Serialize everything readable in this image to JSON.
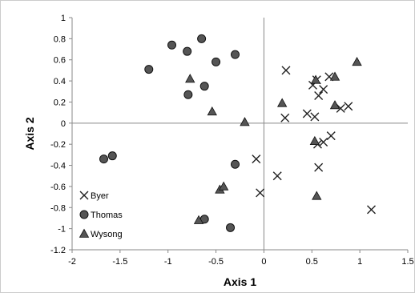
{
  "chart_data": {
    "type": "scatter",
    "title": "",
    "xlabel": "Axis 1",
    "ylabel": "Axis 2",
    "xlim": [
      -2,
      1.5
    ],
    "ylim": [
      -1.2,
      1
    ],
    "xticks": [
      "-2",
      "-1.5",
      "-1",
      "-0.5",
      "0",
      "0.5",
      "1",
      "1.5"
    ],
    "xtick_values": [
      -2,
      -1.5,
      -1,
      -0.5,
      0,
      0.5,
      1,
      1.5
    ],
    "yticks": [
      "1",
      "0.8",
      "0.6",
      "0.4",
      "0.2",
      "0",
      "-0.2",
      "-0.4",
      "-0.6",
      "-0.8",
      "-1",
      "-1.2"
    ],
    "ytick_values": [
      1,
      0.8,
      0.6,
      0.4,
      0.2,
      0,
      -0.2,
      -0.4,
      -0.6,
      -0.8,
      -1,
      -1.2
    ],
    "grid": false,
    "legend_position": "bottom-left",
    "series": [
      {
        "name": "Byer",
        "marker": "x",
        "color": "#222222",
        "points": [
          [
            0.23,
            0.5
          ],
          [
            0.22,
            0.05
          ],
          [
            0.45,
            0.09
          ],
          [
            0.51,
            0.36
          ],
          [
            0.55,
            0.41
          ],
          [
            0.53,
            0.06
          ],
          [
            0.57,
            0.26
          ],
          [
            0.62,
            0.32
          ],
          [
            0.68,
            0.44
          ],
          [
            0.8,
            0.14
          ],
          [
            0.88,
            0.16
          ],
          [
            0.56,
            -0.2
          ],
          [
            0.62,
            -0.18
          ],
          [
            0.7,
            -0.12
          ],
          [
            -0.08,
            -0.34
          ],
          [
            0.14,
            -0.5
          ],
          [
            -0.04,
            -0.66
          ],
          [
            0.57,
            -0.42
          ],
          [
            1.12,
            -0.82
          ]
        ]
      },
      {
        "name": "Thomas",
        "marker": "circle",
        "color": "#555555",
        "points": [
          [
            -1.2,
            0.51
          ],
          [
            -0.96,
            0.74
          ],
          [
            -0.8,
            0.68
          ],
          [
            -0.65,
            0.8
          ],
          [
            -0.5,
            0.58
          ],
          [
            -0.3,
            0.65
          ],
          [
            -0.62,
            0.35
          ],
          [
            -0.79,
            0.27
          ],
          [
            -0.3,
            -0.39
          ],
          [
            -1.67,
            -0.34
          ],
          [
            -1.58,
            -0.31
          ],
          [
            -0.62,
            -0.91
          ],
          [
            -0.35,
            -0.99
          ]
        ]
      },
      {
        "name": "Wysong",
        "marker": "triangle",
        "color": "#555555",
        "points": [
          [
            -0.77,
            0.42
          ],
          [
            -0.54,
            0.11
          ],
          [
            -0.2,
            0.01
          ],
          [
            0.19,
            0.19
          ],
          [
            0.54,
            0.41
          ],
          [
            0.74,
            0.44
          ],
          [
            0.97,
            0.58
          ],
          [
            0.74,
            0.17
          ],
          [
            0.53,
            -0.17
          ],
          [
            0.55,
            -0.69
          ],
          [
            -0.46,
            -0.63
          ],
          [
            -0.42,
            -0.6
          ],
          [
            -0.68,
            -0.92
          ]
        ]
      }
    ]
  }
}
